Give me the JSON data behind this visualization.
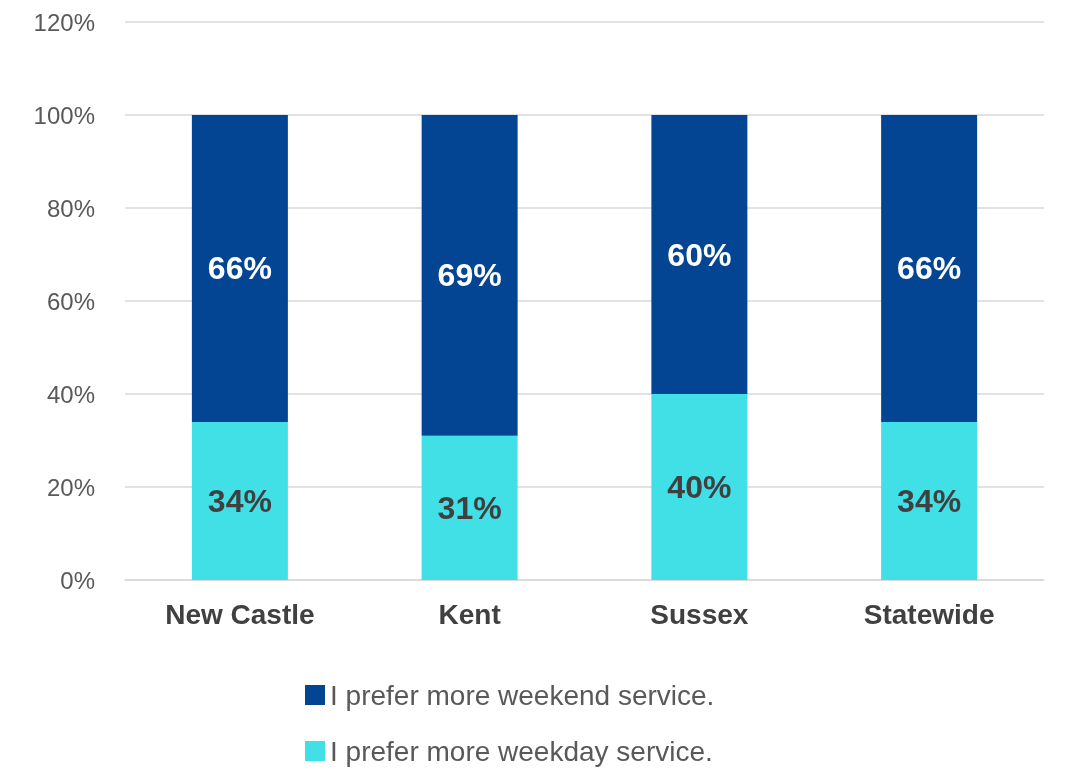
{
  "chart_data": {
    "type": "bar",
    "stacked": true,
    "categories": [
      "New Castle",
      "Kent",
      "Sussex",
      "Statewide"
    ],
    "series": [
      {
        "name": "I prefer more weekday service.",
        "color": "#40e0e6",
        "values": [
          34,
          31,
          40,
          34
        ],
        "value_labels": [
          "34%",
          "31%",
          "40%",
          "34%"
        ]
      },
      {
        "name": "I prefer more weekend service.",
        "color": "#034592",
        "values": [
          66,
          69,
          60,
          66
        ],
        "value_labels": [
          "66%",
          "69%",
          "60%",
          "66%"
        ]
      }
    ],
    "ylim": [
      0,
      120
    ],
    "yticks": [
      {
        "value": 0,
        "label": "0%"
      },
      {
        "value": 20,
        "label": "20%"
      },
      {
        "value": 40,
        "label": "40%"
      },
      {
        "value": 60,
        "label": "60%"
      },
      {
        "value": 80,
        "label": "80%"
      },
      {
        "value": 100,
        "label": "100%"
      },
      {
        "value": 120,
        "label": "120%"
      }
    ],
    "grid": "y",
    "legend": "bottom"
  }
}
